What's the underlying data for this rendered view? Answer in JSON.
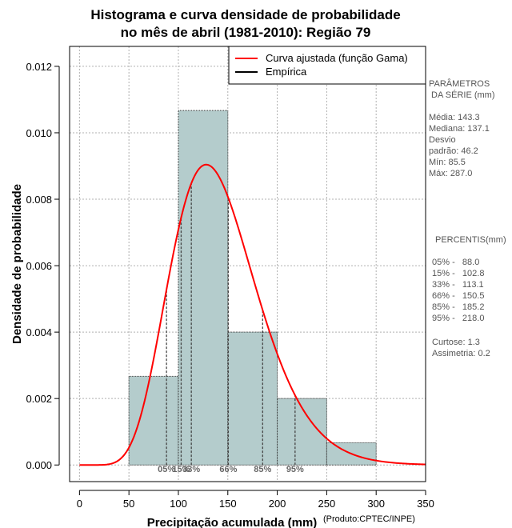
{
  "chart_data": {
    "type": "bar",
    "title_lines": [
      "Histograma e curva densidade de probabilidade",
      "no mês de abril (1981-2010): Região 79"
    ],
    "xlabel": "Precipitação acumulada (mm)",
    "ylabel": "Densidade de probabilidade",
    "credit": "(Produto:CPTEC/INPE)",
    "xlim": [
      -10,
      350
    ],
    "ylim": [
      -0.0005,
      0.0126
    ],
    "x_ticks": [
      0,
      50,
      100,
      150,
      200,
      250,
      300,
      350
    ],
    "y_ticks": [
      0.0,
      0.002,
      0.004,
      0.006,
      0.008,
      0.01,
      0.012
    ],
    "y_tick_labels": [
      "0.000",
      "0.002",
      "0.004",
      "0.006",
      "0.008",
      "0.010",
      "0.012"
    ],
    "grid": true,
    "legend_position": "top-right",
    "legend": [
      {
        "label": "Curva ajustada (função Gama)",
        "color": "#ff0000"
      },
      {
        "label": "Empírica",
        "color": "#000000"
      }
    ],
    "histogram": {
      "bin_edges": [
        50,
        100,
        150,
        200,
        250,
        300
      ],
      "densities": [
        0.00267,
        0.01067,
        0.004,
        0.002,
        0.00067
      ],
      "fill_color": "#b4cccc"
    },
    "gamma_fit": {
      "shape": 9.6,
      "scale": 14.9,
      "color": "#ff0000",
      "x_range": [
        0,
        350
      ]
    },
    "percentile_markers": [
      {
        "label": "05%",
        "x": 88.0
      },
      {
        "label": "15%",
        "x": 102.8
      },
      {
        "label": "33%",
        "x": 113.1
      },
      {
        "label": "66%",
        "x": 150.5
      },
      {
        "label": "85%",
        "x": 185.2
      },
      {
        "label": "95%",
        "x": 218.0
      }
    ],
    "side_panel": {
      "params_heading": [
        "PARÂMETROS",
        " DA SÉRIE (mm)"
      ],
      "params_lines": [
        "Média:  143.3",
        "Mediana:  137.1",
        "Desvio",
        "padrão:  46.2",
        "Mín:  85.5",
        "Máx:  287.0"
      ],
      "percentis_heading": "PERCENTIS(mm)",
      "percentis_lines": [
        "05% -   88.0",
        "15% -   102.8",
        "33% -   113.1",
        "66% -   150.5",
        "85% -   185.2",
        "95% -   218.0"
      ],
      "stats_lines": [
        "Curtose:  1.3",
        "Assimetria:  0.2"
      ]
    }
  }
}
